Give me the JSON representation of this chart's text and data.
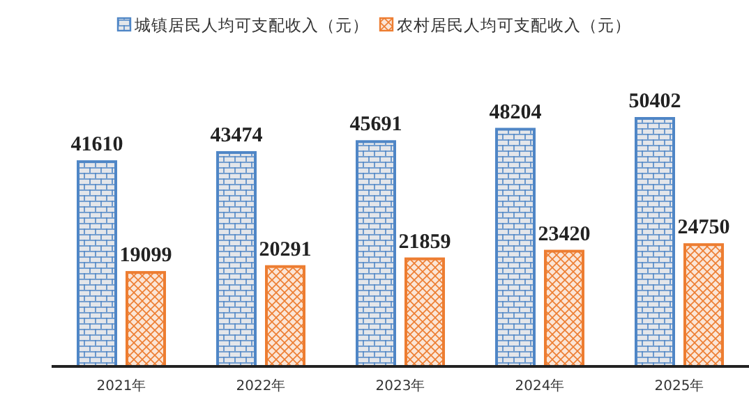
{
  "chart_data": {
    "type": "bar",
    "categories": [
      "2021年",
      "2022年",
      "2023年",
      "2024年",
      "2025年"
    ],
    "series": [
      {
        "name": "城镇居民人均可支配收入（元）",
        "color": "#4f86c6",
        "values": [
          41610,
          43474,
          45691,
          48204,
          50402
        ]
      },
      {
        "name": "农村居民人均可支配收入（元）",
        "color": "#ed7d31",
        "values": [
          19099,
          20291,
          21859,
          23420,
          24750
        ]
      }
    ],
    "data_labels": true,
    "legend": "top"
  }
}
